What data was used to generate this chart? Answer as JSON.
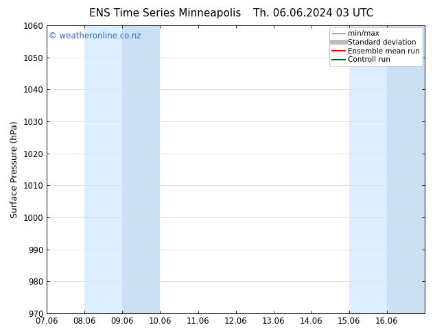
{
  "title_left": "ENS Time Series Minneapolis",
  "title_right": "Th. 06.06.2024 03 UTC",
  "ylabel": "Surface Pressure (hPa)",
  "ylim": [
    970,
    1060
  ],
  "yticks": [
    970,
    980,
    990,
    1000,
    1010,
    1020,
    1030,
    1040,
    1050,
    1060
  ],
  "xtick_labels": [
    "07.06",
    "08.06",
    "09.06",
    "10.06",
    "11.06",
    "12.06",
    "13.06",
    "14.06",
    "15.06",
    "16.06"
  ],
  "num_xticks": 10,
  "shaded_regions": [
    {
      "xmin": 1,
      "xmax": 2,
      "color": "#ddeeff"
    },
    {
      "xmin": 2,
      "xmax": 3,
      "color": "#cce0f5"
    },
    {
      "xmin": 8,
      "xmax": 9,
      "color": "#ddeeff"
    },
    {
      "xmin": 9,
      "xmax": 10,
      "color": "#cce0f5"
    }
  ],
  "watermark_text": "© weatheronline.co.nz",
  "watermark_color": "#3366cc",
  "watermark_fontsize": 8.5,
  "legend_items": [
    {
      "label": "min/max",
      "color": "#999999",
      "linewidth": 1.2
    },
    {
      "label": "Standard deviation",
      "color": "#bbbbbb",
      "linewidth": 5
    },
    {
      "label": "Ensemble mean run",
      "color": "#ff0000",
      "linewidth": 1.5
    },
    {
      "label": "Controll run",
      "color": "#006600",
      "linewidth": 1.5
    }
  ],
  "bg_color": "#ffffff",
  "plot_bg_color": "#ffffff",
  "title_fontsize": 11,
  "axis_label_fontsize": 9,
  "tick_fontsize": 8.5,
  "legend_fontsize": 7.5,
  "fig_width": 6.34,
  "fig_height": 4.9,
  "dpi": 100
}
